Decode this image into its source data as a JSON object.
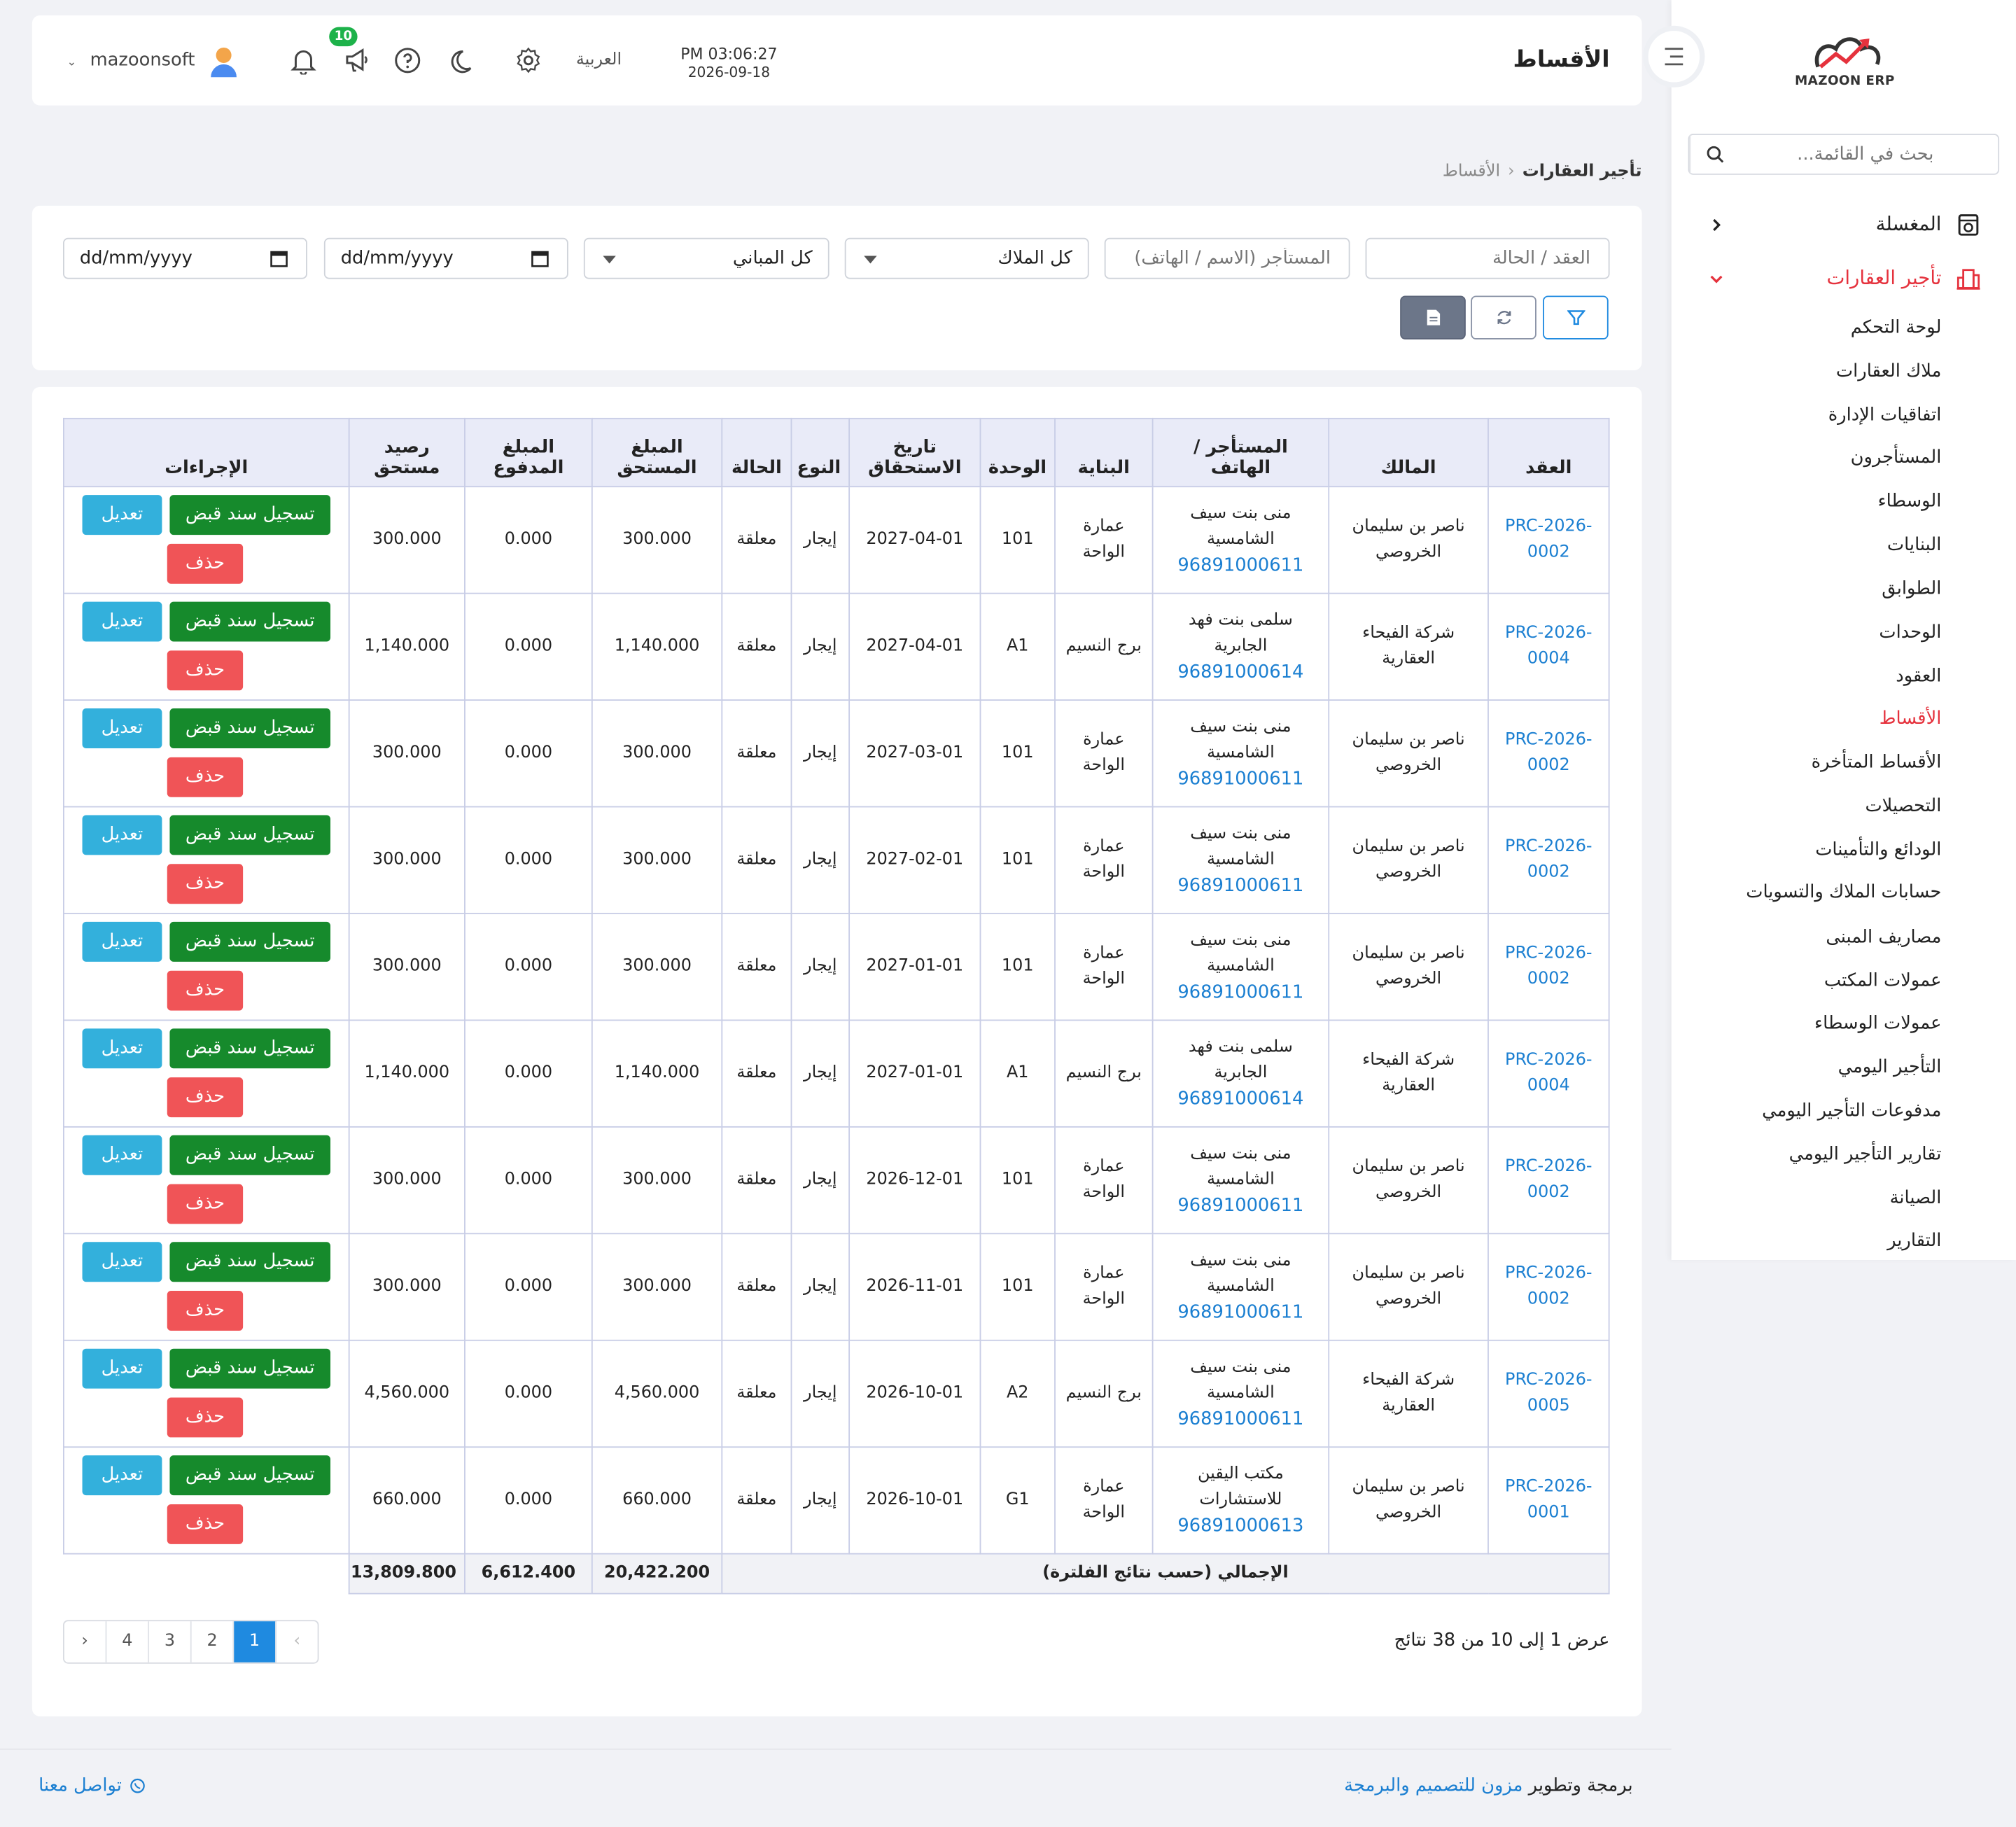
{
  "header": {
    "title": "الأقساط",
    "time": "PM 03:06:27",
    "date": "2026-09-18",
    "language": "العربية",
    "notifications_badge": "10",
    "username": "mazoonsoft"
  },
  "brand": {
    "logo_text": "MAZOON ERP",
    "accent_color": "#e5323d",
    "primary_color": "#1f8ae0"
  },
  "sidebar": {
    "search_placeholder": "بحث في القائمة...",
    "groups": [
      {
        "label": "المغسلة",
        "icon": "laundry-icon",
        "expanded": false
      },
      {
        "label": "تأجير العقارات",
        "icon": "building-icon",
        "expanded": true
      }
    ],
    "items": [
      "لوحة التحكم",
      "ملاك العقارات",
      "اتفاقيات الإدارة",
      "المستأجرون",
      "الوسطاء",
      "البنايات",
      "الطوابق",
      "الوحدات",
      "العقود",
      "الأقساط",
      "الأقساط المتأخرة",
      "التحصيلات",
      "الودائع والتأمينات",
      "حسابات الملاك والتسويات",
      "مصاريف المبنى",
      "عمولات المكتب",
      "عمولات الوسطاء",
      "التأجير اليومي",
      "مدفوعات التأجير اليومي",
      "تقارير التأجير اليومي",
      "الصيانة",
      "التقارير"
    ],
    "active_item": "الأقساط"
  },
  "breadcrumb": {
    "parent": "تأجير العقارات",
    "current": "الأقساط"
  },
  "filters": {
    "contract_placeholder": "العقد / الحالة",
    "tenant_placeholder": "المستأجر (الاسم / الهاتف)",
    "owners_selected": "كل الملاك",
    "buildings_selected": "كل المباني",
    "date_from": "dd/mm/yyyy",
    "date_to": "dd/mm/yyyy"
  },
  "table": {
    "headers": {
      "contract": "العقد",
      "owner": "المالك",
      "tenant": "المستأجر / الهاتف",
      "building": "البناية",
      "unit": "الوحدة",
      "due_date": "تاريخ الاستحقاق",
      "type": "النوع",
      "status": "الحالة",
      "amount_due": "المبلغ المستحق",
      "amount_paid": "المبلغ المدفوع",
      "balance": "رصيد مستحق",
      "actions": "الإجراءات"
    },
    "actions": {
      "receipt": "تسجيل سند قبض",
      "edit": "تعديل",
      "delete": "حذف"
    },
    "rows": [
      {
        "contract": "PRC-2026-0002",
        "owner": "ناصر بن سليمان الخروصي",
        "tenant": "منى بنت سيف الشامسية",
        "phone": "96891000611",
        "building": "عمارة الواحة",
        "unit": "101",
        "due_date": "2027-04-01",
        "type": "إيجار",
        "status": "معلقة",
        "due": "300.000",
        "paid": "0.000",
        "balance": "300.000"
      },
      {
        "contract": "PRC-2026-0004",
        "owner": "شركة الفيحاء العقارية",
        "tenant": "سلمى بنت فهد الجابرية",
        "phone": "96891000614",
        "building": "برج النسيم",
        "unit": "A1",
        "due_date": "2027-04-01",
        "type": "إيجار",
        "status": "معلقة",
        "due": "1,140.000",
        "paid": "0.000",
        "balance": "1,140.000"
      },
      {
        "contract": "PRC-2026-0002",
        "owner": "ناصر بن سليمان الخروصي",
        "tenant": "منى بنت سيف الشامسية",
        "phone": "96891000611",
        "building": "عمارة الواحة",
        "unit": "101",
        "due_date": "2027-03-01",
        "type": "إيجار",
        "status": "معلقة",
        "due": "300.000",
        "paid": "0.000",
        "balance": "300.000"
      },
      {
        "contract": "PRC-2026-0002",
        "owner": "ناصر بن سليمان الخروصي",
        "tenant": "منى بنت سيف الشامسية",
        "phone": "96891000611",
        "building": "عمارة الواحة",
        "unit": "101",
        "due_date": "2027-02-01",
        "type": "إيجار",
        "status": "معلقة",
        "due": "300.000",
        "paid": "0.000",
        "balance": "300.000"
      },
      {
        "contract": "PRC-2026-0002",
        "owner": "ناصر بن سليمان الخروصي",
        "tenant": "منى بنت سيف الشامسية",
        "phone": "96891000611",
        "building": "عمارة الواحة",
        "unit": "101",
        "due_date": "2027-01-01",
        "type": "إيجار",
        "status": "معلقة",
        "due": "300.000",
        "paid": "0.000",
        "balance": "300.000"
      },
      {
        "contract": "PRC-2026-0004",
        "owner": "شركة الفيحاء العقارية",
        "tenant": "سلمى بنت فهد الجابرية",
        "phone": "96891000614",
        "building": "برج النسيم",
        "unit": "A1",
        "due_date": "2027-01-01",
        "type": "إيجار",
        "status": "معلقة",
        "due": "1,140.000",
        "paid": "0.000",
        "balance": "1,140.000"
      },
      {
        "contract": "PRC-2026-0002",
        "owner": "ناصر بن سليمان الخروصي",
        "tenant": "منى بنت سيف الشامسية",
        "phone": "96891000611",
        "building": "عمارة الواحة",
        "unit": "101",
        "due_date": "2026-12-01",
        "type": "إيجار",
        "status": "معلقة",
        "due": "300.000",
        "paid": "0.000",
        "balance": "300.000"
      },
      {
        "contract": "PRC-2026-0002",
        "owner": "ناصر بن سليمان الخروصي",
        "tenant": "منى بنت سيف الشامسية",
        "phone": "96891000611",
        "building": "عمارة الواحة",
        "unit": "101",
        "due_date": "2026-11-01",
        "type": "إيجار",
        "status": "معلقة",
        "due": "300.000",
        "paid": "0.000",
        "balance": "300.000"
      },
      {
        "contract": "PRC-2026-0005",
        "owner": "شركة الفيحاء العقارية",
        "tenant": "منى بنت سيف الشامسية",
        "phone": "96891000611",
        "building": "برج النسيم",
        "unit": "A2",
        "due_date": "2026-10-01",
        "type": "إيجار",
        "status": "معلقة",
        "due": "4,560.000",
        "paid": "0.000",
        "balance": "4,560.000"
      },
      {
        "contract": "PRC-2026-0001",
        "owner": "ناصر بن سليمان الخروصي",
        "tenant": "مكتب اليقين للاستشارات",
        "phone": "96891000613",
        "building": "عمارة الواحة",
        "unit": "G1",
        "due_date": "2026-10-01",
        "type": "إيجار",
        "status": "معلقة",
        "due": "660.000",
        "paid": "0.000",
        "balance": "660.000"
      }
    ],
    "totals": {
      "label": "الإجمالي (حسب نتائج الفلترة)",
      "due": "20,422.200",
      "paid": "6,612.400",
      "balance": "13,809.800"
    }
  },
  "pagination": {
    "summary": "عرض 1 إلى 10 من 38 نتائج",
    "pages": [
      "1",
      "2",
      "3",
      "4"
    ],
    "current": "1",
    "prev": "‹",
    "next": "›"
  },
  "footer": {
    "credit_prefix": "برمجة وتطوير",
    "credit_link": "مزون للتصميم والبرمجة",
    "contact": "تواصل معنا"
  }
}
